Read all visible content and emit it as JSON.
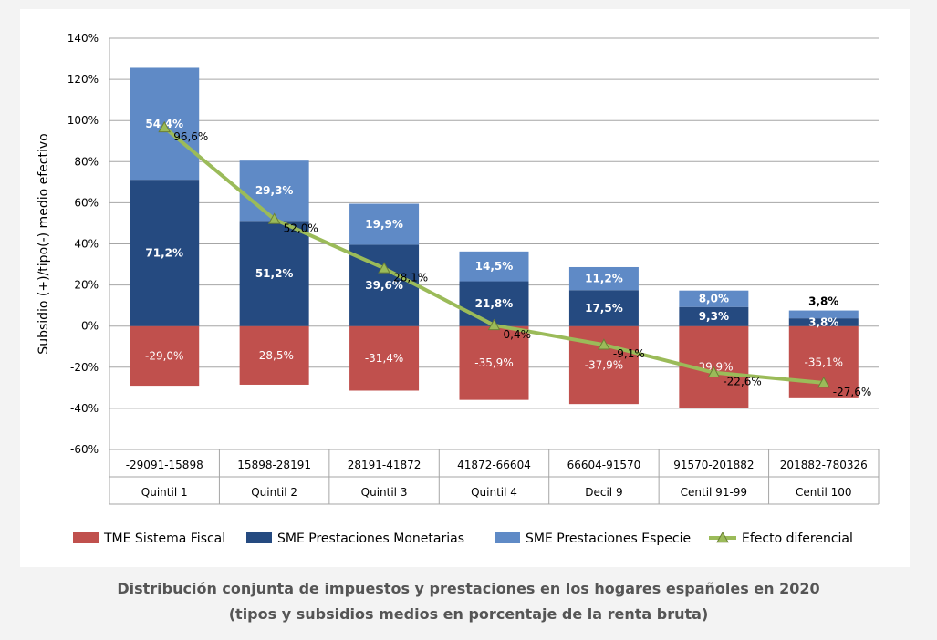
{
  "colors": {
    "tme": "#c0504d",
    "sme_monetarias": "#254a80",
    "sme_especie": "#5f8ac6",
    "efecto": "#9bbb59",
    "grid": "#a6a6a6",
    "text": "#000000",
    "label_light": "#ffffff"
  },
  "caption": {
    "line1": "Distribución conjunta de impuestos y prestaciones en los hogares españoles en 2020",
    "line2": "(tipos y subsidios medios en porcentaje de la renta bruta)"
  },
  "chart_data": {
    "type": "bar",
    "stacked": true,
    "title": "",
    "xlabel": "",
    "ylabel": "Subsidio (+)/tipo(-) medio efectivo",
    "ylim": [
      -60,
      140
    ],
    "yticks": [
      -60,
      -40,
      -20,
      0,
      20,
      40,
      60,
      80,
      100,
      120,
      140
    ],
    "ytick_labels": [
      "-60%",
      "-40%",
      "-20%",
      "0%",
      "20%",
      "40%",
      "60%",
      "80%",
      "100%",
      "120%",
      "140%"
    ],
    "grid": true,
    "legend_position": "bottom",
    "categories": [
      "Quintil 1",
      "Quintil 2",
      "Quintil 3",
      "Quintil 4",
      "Decil 9",
      "Centil 91-99",
      "Centil 100"
    ],
    "category_ranges": [
      "-29091-15898",
      "15898-28191",
      "28191-41872",
      "41872-66604",
      "66604-91570",
      "91570-201882",
      "201882-780326"
    ],
    "series": [
      {
        "name": "TME Sistema Fiscal",
        "kind": "bar",
        "color_key": "tme",
        "values": [
          -29.0,
          -28.5,
          -31.4,
          -35.9,
          -37.9,
          -39.9,
          -35.1
        ],
        "labels": [
          "-29,0%",
          "-28,5%",
          "-31,4%",
          "-35,9%",
          "-37,9%",
          "-39,9%",
          "-35,1%"
        ]
      },
      {
        "name": "SME Prestaciones Monetarias",
        "kind": "bar",
        "color_key": "sme_monetarias",
        "values": [
          71.2,
          51.2,
          39.6,
          21.8,
          17.5,
          9.3,
          3.8
        ],
        "labels": [
          "71,2%",
          "51,2%",
          "39,6%",
          "21,8%",
          "17,5%",
          "9,3%",
          "3,8%"
        ]
      },
      {
        "name": "SME Prestaciones Especie",
        "kind": "bar",
        "color_key": "sme_especie",
        "values": [
          54.4,
          29.3,
          19.9,
          14.5,
          11.2,
          8.0,
          3.8
        ],
        "labels": [
          "54,4%",
          "29,3%",
          "19,9%",
          "14,5%",
          "11,2%",
          "8,0%",
          "3,8%"
        ]
      },
      {
        "name": "Efecto diferencial",
        "kind": "line",
        "marker": "triangle",
        "color_key": "efecto",
        "values": [
          96.6,
          52.0,
          28.1,
          0.4,
          -9.1,
          -22.6,
          -27.6
        ],
        "labels": [
          "96,6%",
          "52,0%",
          "28,1%",
          "0,4%",
          "-9,1%",
          "-22,6%",
          "-27,6%"
        ]
      }
    ]
  }
}
